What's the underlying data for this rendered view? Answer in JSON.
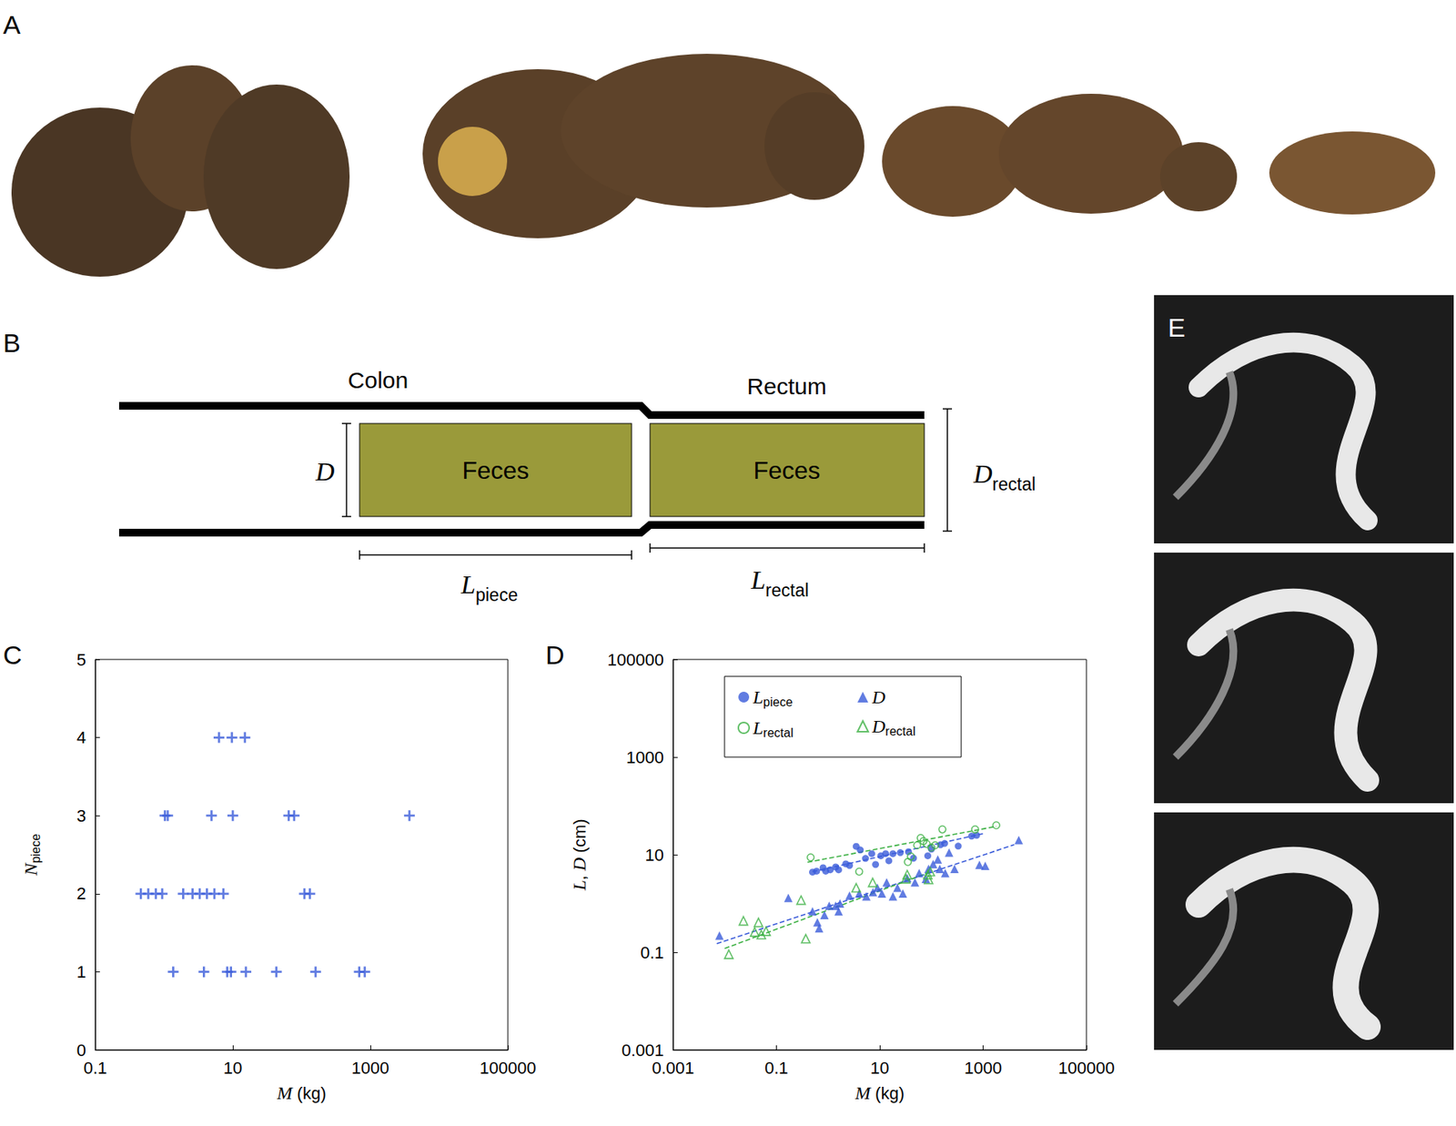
{
  "panel_labels": [
    "A",
    "B",
    "C",
    "D",
    "E"
  ],
  "diagram": {
    "colon": "Colon",
    "rectum": "Rectum",
    "feces": [
      "Feces",
      "Feces"
    ],
    "D": "D",
    "D_rectal": "Drectal",
    "L_piece": "Lpiece",
    "L_rectal": "Lrectal"
  },
  "chart_data": [
    {
      "type": "scatter",
      "x_label": "M (kg)",
      "y_label": "Npiece",
      "log": "x",
      "grid": false,
      "xlim": [
        0.1,
        100000
      ],
      "xticks": [
        0.1,
        10,
        1000,
        100000
      ],
      "ylim": [
        0,
        5
      ],
      "yticks": [
        0,
        1,
        2,
        3,
        4,
        5
      ],
      "series": [
        {
          "color": "#3a5bd9",
          "marker": "plus",
          "x": [
            6.3,
            9.7,
            15,
            1.03,
            1.13,
            4.9,
            10,
            65,
            78,
            3700,
            0.46,
            0.59,
            0.76,
            0.94,
            1.9,
            2.6,
            3.3,
            4.2,
            5.4,
            7.3,
            110,
            132,
            1.36,
            3.8,
            8.3,
            9.4,
            15.5,
            43,
            160,
            690,
            830
          ],
          "values": [
            4,
            4,
            4,
            3,
            3,
            3,
            3,
            3,
            3,
            3,
            2,
            2,
            2,
            2,
            2,
            2,
            2,
            2,
            2,
            2,
            2,
            2,
            1,
            1,
            1,
            1,
            1,
            1,
            1,
            1,
            1
          ]
        }
      ]
    },
    {
      "type": "scatter",
      "x_label": "M (kg)",
      "y_label": "L, D (cm)",
      "log": true,
      "grid": false,
      "legend": "upper left",
      "xlim": [
        0.001,
        100000
      ],
      "xticks": [
        0.001,
        0.1,
        10,
        1000,
        100000
      ],
      "ylim": [
        0.001,
        100000
      ],
      "yticks": [
        0.001,
        0.1,
        10,
        1000,
        100000
      ],
      "series": [
        {
          "name": "Lpiece",
          "color": "#3a5bd9",
          "marker": "circle",
          "line_style": "dashed",
          "x": [
            0.5,
            0.6,
            0.8,
            1.1,
            0.9,
            1.4,
            1.6,
            2.2,
            2.6,
            3.5,
            4.2,
            5.3,
            7,
            8.3,
            10.5,
            13,
            15,
            18,
            25,
            36,
            45,
            85,
            100,
            150,
            180,
            330,
            600,
            750
          ],
          "values": [
            4.4,
            4.6,
            5.4,
            4.9,
            4.6,
            5.6,
            4.9,
            6.5,
            6.0,
            14.8,
            12.5,
            8.4,
            10.5,
            6.3,
            9.5,
            10.5,
            7.5,
            10.5,
            11,
            11.5,
            8.5,
            9.5,
            13,
            16,
            17,
            15,
            24,
            25
          ],
          "fit": {
            "x": [
              0.5,
              1000
            ],
            "values": [
              4.5,
              27
            ]
          }
        },
        {
          "name": "D",
          "color": "#3a5bd9",
          "marker": "triangle",
          "line_style": "dashed",
          "x": [
            0.0079,
            0.17,
            0.5,
            0.62,
            0.67,
            0.85,
            1.05,
            1.4,
            1.7,
            1.6,
            2.6,
            4,
            5.5,
            7.4,
            9,
            11,
            13.6,
            18,
            22,
            28,
            34,
            48,
            58,
            78,
            88,
            108,
            133,
            145,
            185,
            220,
            280,
            850,
            1100,
            4900
          ],
          "values": [
            0.22,
            1.3,
            0.69,
            0.41,
            0.31,
            0.58,
            0.9,
            0.9,
            1.0,
            0.69,
            1.45,
            1.6,
            1.4,
            1.7,
            2.1,
            1.6,
            2.7,
            1.4,
            2.1,
            1.6,
            3.3,
            2.7,
            4.2,
            3.2,
            5.1,
            6.4,
            8,
            5.1,
            4.2,
            11,
            5.1,
            6.2,
            5.9,
            20
          ],
          "fit": {
            "x": [
              0.007,
              4000
            ],
            "values": [
              0.15,
              16
            ]
          }
        },
        {
          "name": "Lrectal",
          "color": "#3cb043",
          "marker": "circle-open",
          "line_style": "dashed",
          "x": [
            0.46,
            4,
            35,
            40,
            53,
            62,
            70,
            81,
            100,
            118,
            163,
            700,
            1800
          ],
          "values": [
            8.8,
            4.5,
            7.1,
            9.2,
            15.6,
            22,
            19,
            16.6,
            14,
            15.6,
            33,
            33,
            40
          ],
          "fit": {
            "x": [
              0.4,
              1800
            ],
            "values": [
              7,
              38
            ]
          }
        },
        {
          "name": "Drectal",
          "color": "#3cb043",
          "marker": "triangle-open",
          "line_style": "dashed",
          "x": [
            0.012,
            0.023,
            0.038,
            0.045,
            0.051,
            0.063,
            0.3,
            0.37,
            3.5,
            7.3,
            32,
            34,
            88,
            85,
            95
          ],
          "values": [
            0.091,
            0.44,
            0.26,
            0.41,
            0.23,
            0.27,
            1.17,
            0.19,
            2.1,
            2.7,
            3.2,
            3.9,
            3.1,
            3.9,
            4.5
          ],
          "fit": {
            "x": [
              0.01,
              100
            ],
            "values": [
              0.12,
              4.5
            ]
          }
        }
      ]
    }
  ]
}
